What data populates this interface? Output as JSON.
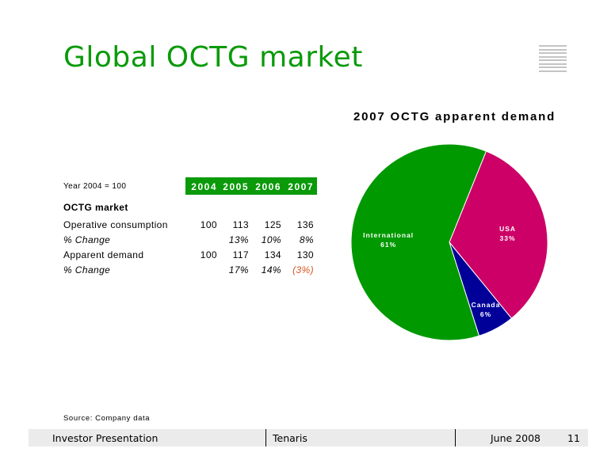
{
  "slide": {
    "title": "Global OCTG market",
    "source": "Source:  Company data",
    "colors": {
      "title": "#0a9a0a",
      "header": "#0a9a0a",
      "negative": "#d9531e"
    }
  },
  "table": {
    "base_label": "Year 2004 =  100",
    "years": [
      "2004",
      "2005",
      "2006",
      "2007"
    ],
    "section": "OCTG market",
    "rows": [
      {
        "label": "Operative consumption",
        "italic": false,
        "values": [
          "100",
          "113",
          "125",
          "136"
        ]
      },
      {
        "label": "% Change",
        "italic": true,
        "values": [
          "",
          "13%",
          "10%",
          "8%"
        ]
      },
      {
        "label": "Apparent demand",
        "italic": false,
        "values": [
          "100",
          "117",
          "134",
          "130"
        ]
      },
      {
        "label": "% Change",
        "italic": true,
        "values": [
          "",
          "17%",
          "14%",
          "(3%)"
        ]
      }
    ]
  },
  "chart_data": {
    "type": "pie",
    "title": "2007 OCTG apparent demand",
    "slices": [
      {
        "name": "USA",
        "value": 33,
        "label": "33%",
        "color": "#cc0066"
      },
      {
        "name": "Canada",
        "value": 6,
        "label": "6%",
        "color": "#000099"
      },
      {
        "name": "International",
        "value": 61,
        "label": "61%",
        "color": "#009900"
      }
    ]
  },
  "footer": {
    "left": "Investor Presentation",
    "center": "Tenaris",
    "date": "June 2008",
    "page": "11"
  }
}
